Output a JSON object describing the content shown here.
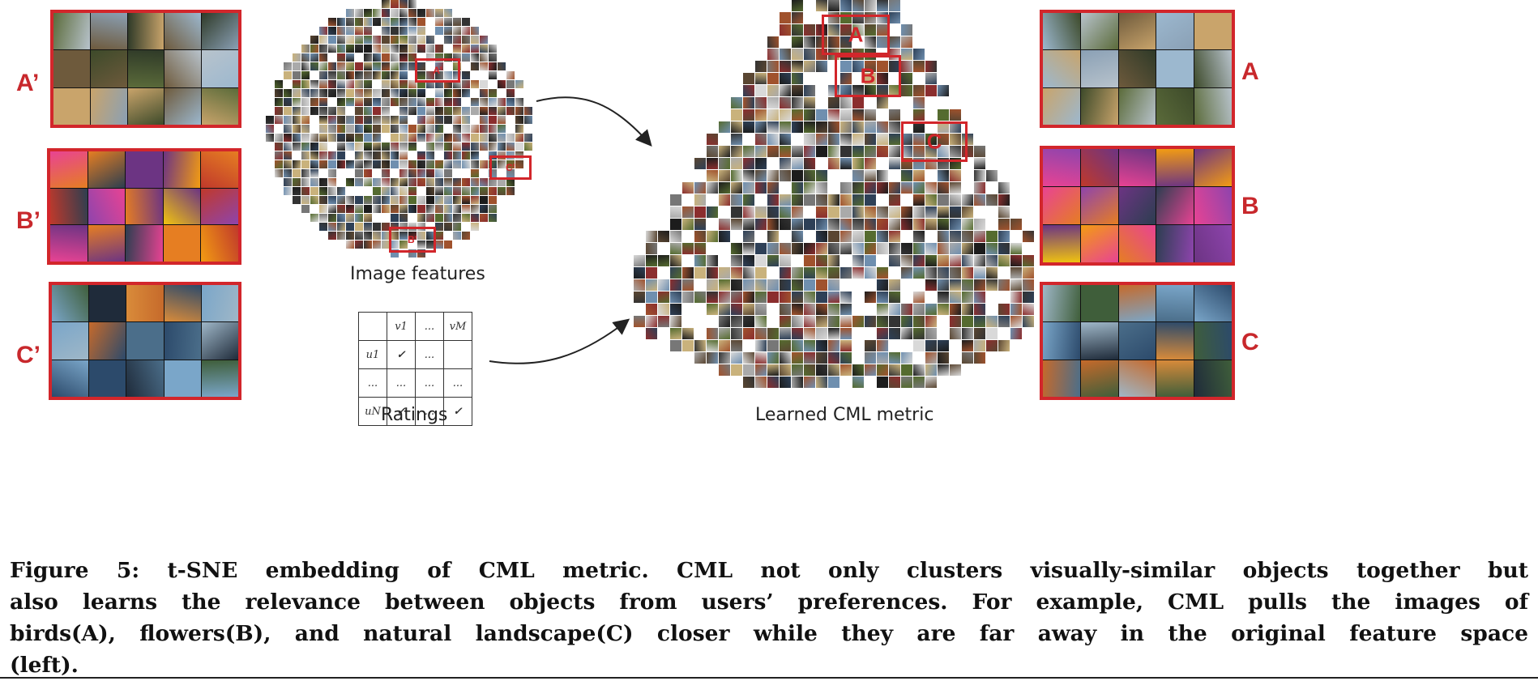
{
  "labels": {
    "a_prime": "A’",
    "b_prime": "B’",
    "c_prime": "C’",
    "a": "A",
    "b": "B",
    "c": "C"
  },
  "captions": {
    "image_features": "Image features",
    "ratings": "Ratings",
    "learned": "Learned CML metric"
  },
  "ratings_table": {
    "header": [
      "",
      "v1",
      "...",
      "vM"
    ],
    "rows": [
      [
        "u1",
        "✓",
        "...",
        ""
      ],
      [
        "...",
        "...",
        "...",
        "..."
      ],
      [
        "uN",
        "✓",
        "...",
        "✓"
      ]
    ]
  },
  "cluster_boxes": {
    "left_a": "A’",
    "left_b": "B’",
    "left_c": "C’",
    "right_a": "A",
    "right_b": "B",
    "right_c": "C"
  },
  "figure_caption": {
    "line1": "Figure 5: t-SNE embedding of CML metric. CML not only clusters visually-similar objects together but",
    "line2": "also learns the relevance between objects from users’ preferences. For example, CML pulls the images of",
    "line3": "birds(A), flowers(B), and natural landscape(C) closer while they are far away in the original feature space",
    "line4": "(left)."
  },
  "colors": {
    "accent_red": "#d2262b",
    "check_green": "#3aa53a"
  }
}
